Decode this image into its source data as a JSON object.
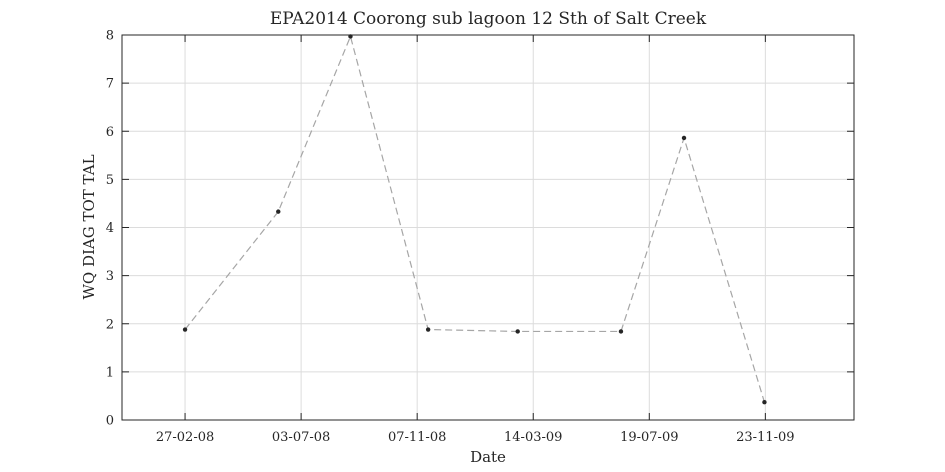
{
  "chart_data": {
    "type": "line",
    "title": "EPA2014 Coorong sub lagoon 12 Sth of Salt Creek",
    "xlabel": "Date",
    "ylabel": "WQ DIAG TOT TAL",
    "x_axis": {
      "kind": "date",
      "range": [
        "2007-12-20",
        "2010-02-28"
      ],
      "ticks": [
        "2008-02-27",
        "2008-07-03",
        "2008-11-07",
        "2009-03-14",
        "2009-07-19",
        "2009-11-23"
      ],
      "tick_labels": [
        "27-02-08",
        "03-07-08",
        "07-11-08",
        "14-03-09",
        "19-07-09",
        "23-11-09"
      ]
    },
    "y_axis": {
      "range": [
        0,
        8
      ],
      "ticks": [
        0,
        1,
        2,
        3,
        4,
        5,
        6,
        7,
        8
      ],
      "tick_labels": [
        "0",
        "1",
        "2",
        "3",
        "4",
        "5",
        "6",
        "7",
        "8"
      ]
    },
    "grid": true,
    "series": [
      {
        "x": [
          "2008-02-27",
          "2008-06-08",
          "2008-08-26",
          "2008-11-19",
          "2009-02-25",
          "2009-06-18",
          "2009-08-26",
          "2009-11-22"
        ],
        "y": [
          1.88,
          4.33,
          7.97,
          1.88,
          1.84,
          1.84,
          5.86,
          0.37
        ],
        "line_style": "dashed",
        "line_color": "#a6a6a6",
        "marker": "dot",
        "marker_color": "#262626"
      }
    ]
  }
}
